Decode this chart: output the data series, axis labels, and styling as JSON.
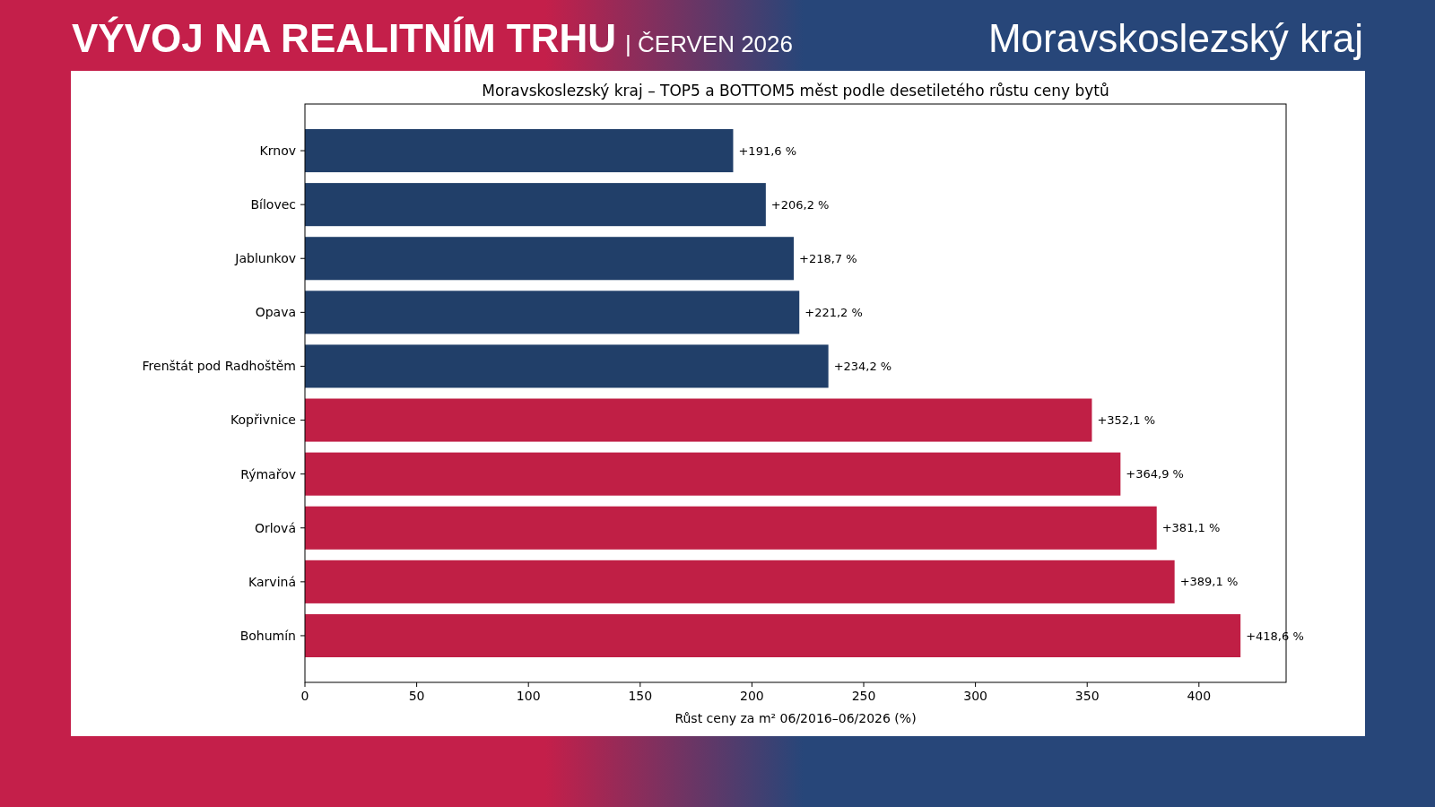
{
  "chart_data": {
    "type": "bar",
    "orientation": "horizontal",
    "title": "Moravskoslezský kraj – TOP5 a BOTTOM5 měst podle desetiletého růstu ceny bytů",
    "xlabel": "Růst ceny za m² 06/2016–06/2026 (%)",
    "annotations": [
      "VÝVOJ NA REALITNÍM TRHU",
      "| ČERVEN 2026",
      "Moravskoslezský kraj"
    ],
    "categories": [
      "Krnov",
      "Bílovec",
      "Jablunkov",
      "Opava",
      "Frenštát pod Radhoštěm",
      "Kopřivnice",
      "Rýmařov",
      "Orlová",
      "Karviná",
      "Bohumín"
    ],
    "values": [
      191.6,
      206.2,
      218.7,
      221.2,
      234.2,
      352.1,
      364.9,
      381.1,
      389.1,
      418.6
    ],
    "value_labels": [
      "+191,6 %",
      "+206,2 %",
      "+218,7 %",
      "+221,2 %",
      "+234,2 %",
      "+352,1 %",
      "+364,9 %",
      "+381,1 %",
      "+389,1 %",
      "+418,6 %"
    ],
    "colors": [
      "#213f69",
      "#213f69",
      "#213f69",
      "#213f69",
      "#213f69",
      "#c01f45",
      "#c01f45",
      "#c01f45",
      "#c01f45",
      "#c01f45"
    ],
    "xlim": [
      0,
      439
    ],
    "xticks": [
      0,
      50,
      100,
      150,
      200,
      250,
      300,
      350,
      400
    ],
    "grid": false
  }
}
